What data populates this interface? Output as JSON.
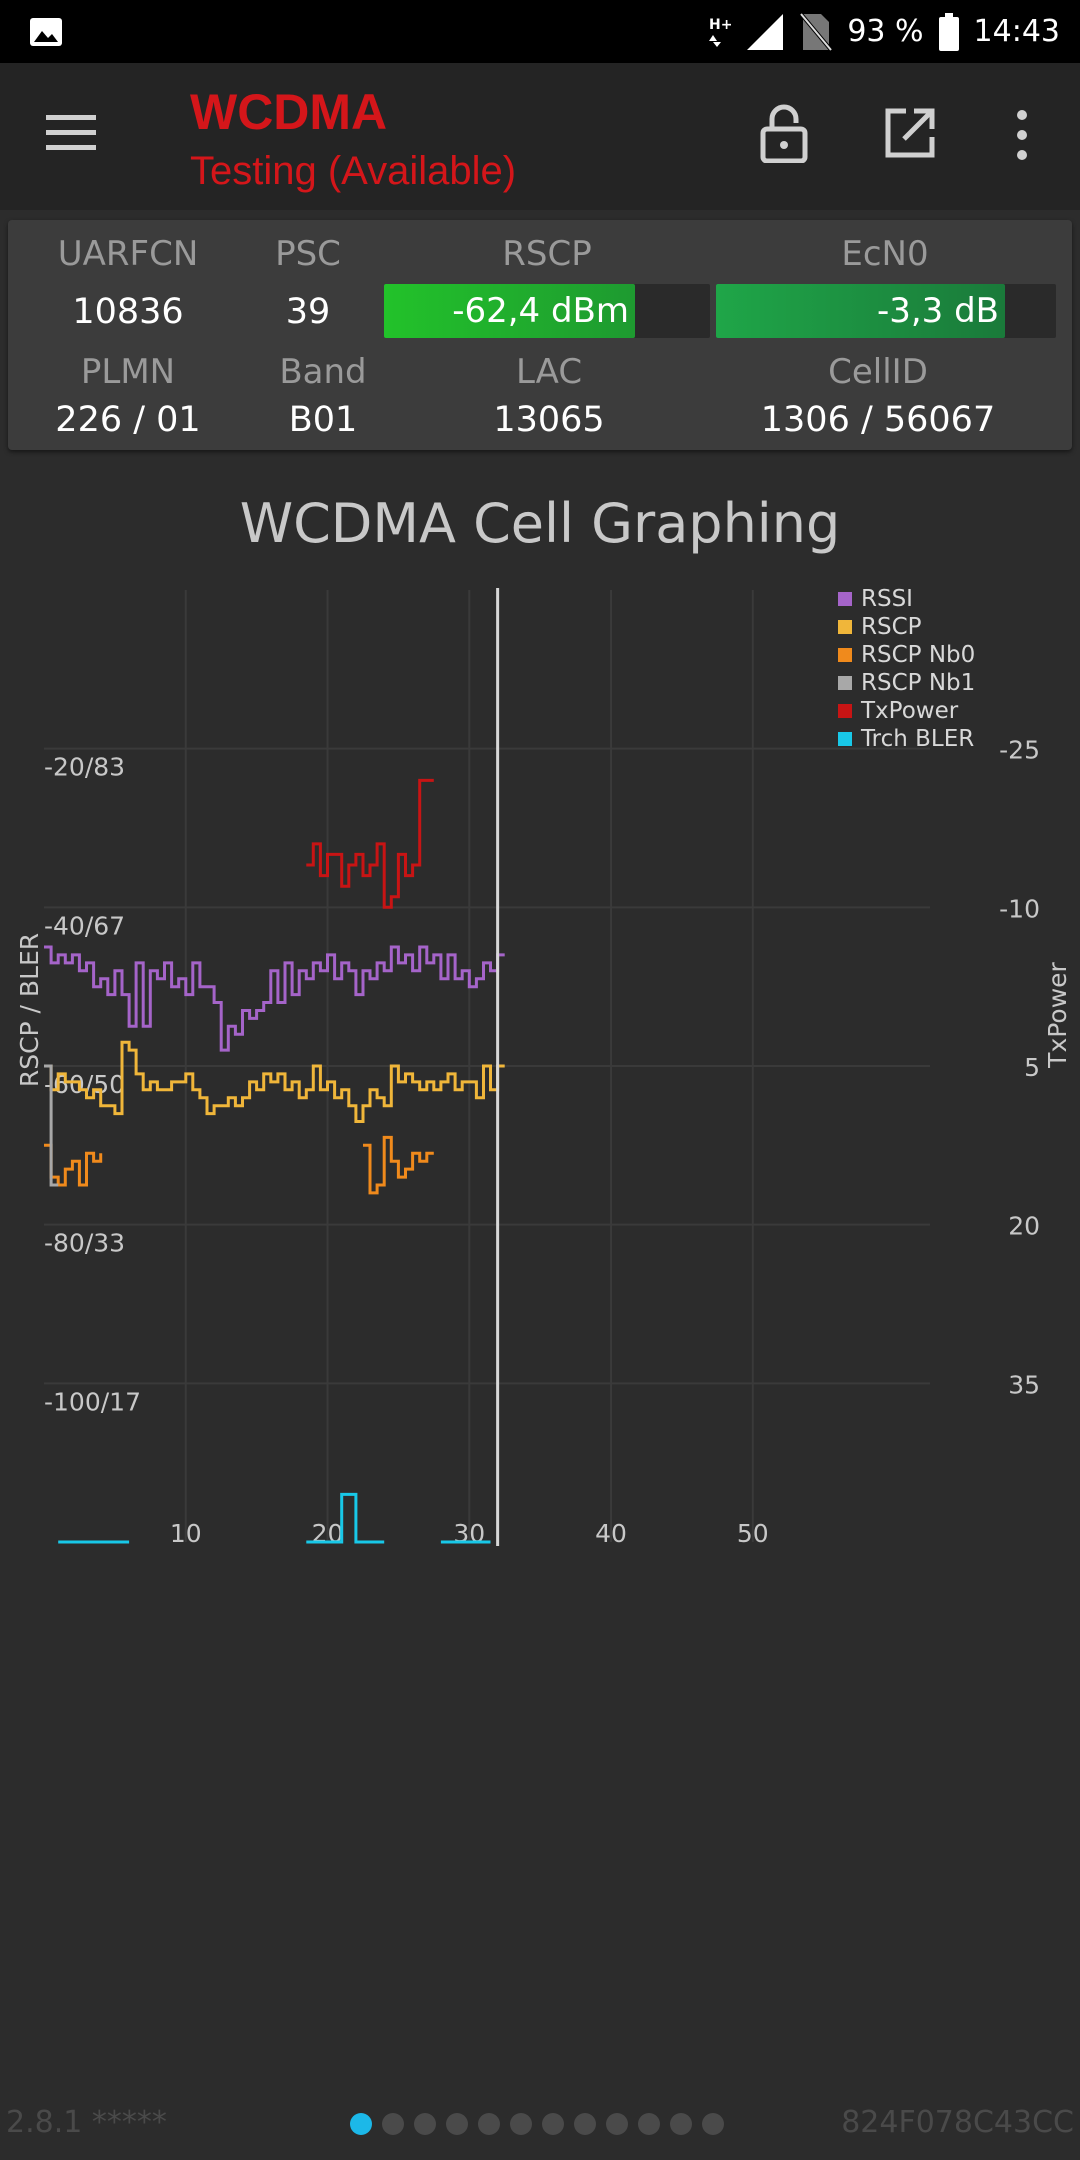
{
  "status_bar": {
    "network": "H+",
    "battery": "93 %",
    "time": "14:43",
    "icons": [
      "image-icon",
      "data-arrows-icon",
      "signal-icon",
      "no-sim-icon",
      "battery-icon"
    ]
  },
  "app_bar": {
    "title": "WCDMA",
    "subtitle": "Testing (Available)",
    "actions": [
      "menu-icon",
      "lock-icon",
      "open-external-icon",
      "more-vert-icon"
    ],
    "title_color": "#d4161a"
  },
  "cell_info": {
    "labels": {
      "uarfcn": "UARFCN",
      "psc": "PSC",
      "rscp": "RSCP",
      "ecn0": "EcN0",
      "plmn": "PLMN",
      "band": "Band",
      "lac": "LAC",
      "cellid": "CellID"
    },
    "values": {
      "uarfcn": "10836",
      "psc": "39",
      "rscp": "-62,4 dBm",
      "ecn0": "-3,3 dB",
      "plmn": "226 / 01",
      "band": "B01",
      "lac": "13065",
      "cellid": "1306 / 56067"
    },
    "rscp_level": 0.77,
    "ecn0_level": 0.85,
    "colors": {
      "rscp_bar": "#22c22a",
      "ecn0_bar": "#1fa648"
    }
  },
  "graph": {
    "title": "WCDMA Cell Graphing",
    "left_axis_label": "RSCP / BLER",
    "right_axis_label": "TxPower"
  },
  "chart_data": {
    "type": "line",
    "step": true,
    "x_ticks": [
      10,
      20,
      30,
      40,
      50
    ],
    "xlim": [
      0,
      62.5
    ],
    "left_ticks": [
      "-20/83",
      "-40/67",
      "-60/50",
      "-80/33",
      "-100/17"
    ],
    "left_tick_values": [
      -20,
      -40,
      -60,
      -80,
      -100
    ],
    "ylim_left": [
      -120,
      0
    ],
    "right_ticks": [
      "-25",
      "-10",
      "5",
      "20",
      "35"
    ],
    "right_tick_values": [
      -25,
      -10,
      5,
      20,
      35
    ],
    "ylim_right": [
      -40,
      50
    ],
    "cursor_x": 32,
    "legend": [
      {
        "name": "RSSI",
        "color": "#a564c9"
      },
      {
        "name": "RSCP",
        "color": "#f0b63a"
      },
      {
        "name": "RSCP Nb0",
        "color": "#f08a1c"
      },
      {
        "name": "RSCP Nb1",
        "color": "#a8a8a8"
      },
      {
        "name": "TxPower",
        "color": "#c81414"
      },
      {
        "name": "Trch BLER",
        "color": "#18c8e8"
      }
    ],
    "series": [
      {
        "name": "RSSI",
        "axis": "left",
        "color": "#a564c9",
        "x": [
          0,
          0.5,
          1,
          1.5,
          2,
          2.5,
          3,
          3.5,
          4,
          4.5,
          5,
          5.5,
          6,
          6.5,
          7,
          7.5,
          8,
          8.5,
          9,
          9.5,
          10,
          10.5,
          11,
          11.5,
          12,
          12.5,
          13,
          13.5,
          14,
          14.5,
          15,
          15.5,
          16,
          16.5,
          17,
          17.5,
          18,
          18.5,
          19,
          19.5,
          20,
          20.5,
          21,
          21.5,
          22,
          22.5,
          23,
          23.5,
          24,
          24.5,
          25,
          25.5,
          26,
          26.5,
          27,
          27.5,
          28,
          28.5,
          29,
          29.5,
          30,
          30.5,
          31,
          31.5,
          32
        ],
        "y": [
          -45,
          -47,
          -46,
          -47,
          -46,
          -48,
          -47,
          -50,
          -49,
          -51,
          -48,
          -51,
          -55,
          -47,
          -55,
          -48,
          -49,
          -47,
          -50,
          -49,
          -51,
          -47,
          -50,
          -50,
          -52,
          -58,
          -55,
          -56,
          -53,
          -54,
          -53,
          -52,
          -48,
          -52,
          -47,
          -51,
          -48,
          -49,
          -47,
          -48,
          -46,
          -49,
          -47,
          -48,
          -51,
          -48,
          -49,
          -47,
          -48,
          -45,
          -47,
          -46,
          -48,
          -45,
          -47,
          -46,
          -49,
          -46,
          -49,
          -48,
          -50,
          -49,
          -47,
          -48,
          -46
        ]
      },
      {
        "name": "RSCP",
        "axis": "left",
        "color": "#f0b63a",
        "x": [
          0,
          0.5,
          1,
          1.5,
          2,
          2.5,
          3,
          3.5,
          4,
          4.5,
          5,
          5.5,
          6,
          6.5,
          7,
          7.5,
          8,
          8.5,
          9,
          9.5,
          10,
          10.5,
          11,
          11.5,
          12,
          12.5,
          13,
          13.5,
          14,
          14.5,
          15,
          15.5,
          16,
          16.5,
          17,
          17.5,
          18,
          18.5,
          19,
          19.5,
          20,
          20.5,
          21,
          21.5,
          22,
          22.5,
          23,
          23.5,
          24,
          24.5,
          25,
          25.5,
          26,
          26.5,
          27,
          27.5,
          28,
          28.5,
          29,
          29.5,
          30,
          30.5,
          31,
          31.5,
          32
        ],
        "y": [
          -60,
          -63,
          -61,
          -62,
          -62,
          -63,
          -64,
          -63,
          -65,
          -65,
          -66,
          -57,
          -58,
          -61,
          -63,
          -62,
          -63,
          -63,
          -62,
          -62,
          -61,
          -63,
          -64,
          -66,
          -65,
          -65,
          -64,
          -65,
          -64,
          -62,
          -63,
          -61,
          -62,
          -61,
          -63,
          -62,
          -64,
          -63,
          -60,
          -63,
          -62,
          -64,
          -63,
          -65,
          -67,
          -65,
          -63,
          -64,
          -65,
          -60,
          -62,
          -61,
          -62,
          -63,
          -62,
          -63,
          -62,
          -61,
          -63,
          -62,
          -62,
          -64,
          -60,
          -63,
          -60
        ]
      },
      {
        "name": "RSCP Nb0",
        "axis": "left",
        "color": "#f08a1c",
        "x": [
          0,
          0.5,
          1,
          1.5,
          2,
          2.5,
          3,
          3.5,
          4,
          22.5,
          23,
          23.5,
          24,
          24.5,
          25,
          25.5,
          26,
          26.5,
          27
        ],
        "y": [
          -70,
          -74,
          -75,
          -73,
          -72,
          -75,
          -71,
          -72,
          -71,
          -70,
          -76,
          -75,
          -69,
          -72,
          -74,
          -73,
          -71,
          -72,
          -71
        ]
      },
      {
        "name": "RSCP Nb1",
        "axis": "left",
        "color": "#a8a8a8",
        "x": [
          0,
          0.5
        ],
        "y": [
          -60,
          -75
        ]
      },
      {
        "name": "TxPower",
        "axis": "right",
        "color": "#c81414",
        "x": [
          18.5,
          19,
          19.5,
          20,
          20.5,
          21,
          21.5,
          22,
          22.5,
          23,
          23.5,
          24,
          24.5,
          25,
          25.5,
          26,
          26.5,
          27
        ],
        "y": [
          -14,
          -16,
          -13,
          -15,
          -15,
          -12,
          -14,
          -15,
          -13,
          -14,
          -16,
          -10,
          -11,
          -15,
          -13,
          -14,
          -22,
          -22
        ]
      },
      {
        "name": "Trch BLER",
        "axis": "left",
        "color": "#18c8e8",
        "x": [
          1,
          2,
          3,
          4,
          5,
          6,
          18.5,
          19,
          20,
          21,
          22,
          23,
          24,
          28,
          29,
          30,
          31
        ],
        "y": [
          -120,
          -120,
          -120,
          -120,
          -120,
          -120,
          -120,
          -120,
          -120,
          -114,
          -120,
          -120,
          -120,
          -120,
          -120,
          -120,
          -120
        ]
      }
    ]
  },
  "footer": {
    "version": "2.8.1 *****",
    "device_id": "824F078C43CC",
    "pages": 12,
    "active_page": 0
  }
}
